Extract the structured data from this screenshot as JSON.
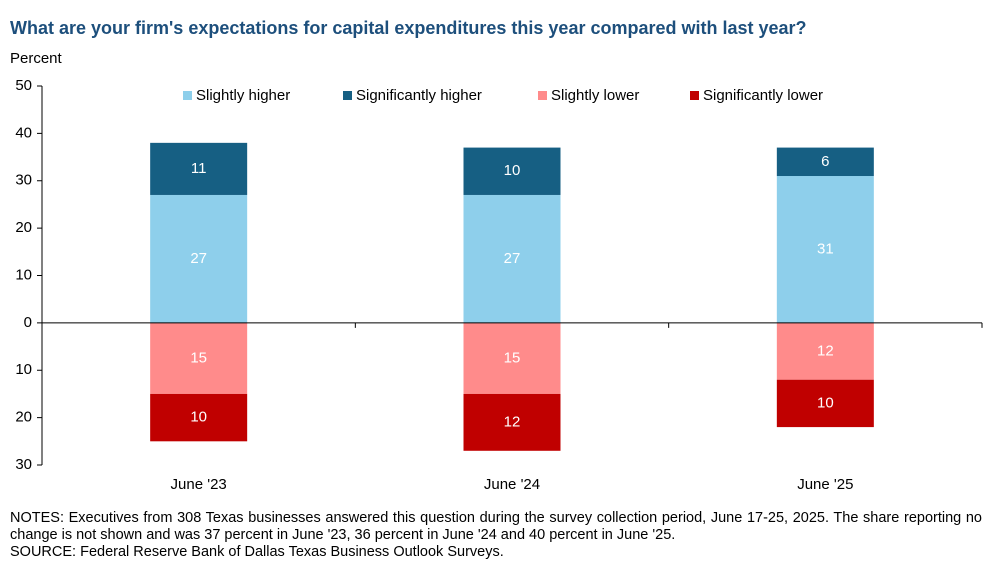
{
  "chart_data": {
    "type": "diverging_stacked_bar",
    "title": "What are your firm's expectations for capital expenditures this year compared with last year?",
    "ylabel": "Percent",
    "categories": [
      "June '23",
      "June '24",
      "June '25"
    ],
    "series": [
      {
        "name": "Slightly higher",
        "color": "#8ecfeb",
        "values": [
          27,
          27,
          31
        ]
      },
      {
        "name": "Significantly higher",
        "color": "#165f83",
        "values": [
          11,
          10,
          6
        ]
      },
      {
        "name": "Slightly lower",
        "color": "#ff8b8b",
        "values": [
          -15,
          -15,
          -12
        ],
        "value_labels": [
          "15",
          "15",
          "12"
        ]
      },
      {
        "name": "Significantly lower",
        "color": "#c00000",
        "values": [
          -10,
          -12,
          -10
        ],
        "value_labels": [
          "10",
          "12",
          "10"
        ]
      }
    ],
    "ylim": [
      -30,
      50
    ],
    "yticks": [
      {
        "value": -30,
        "label": "30"
      },
      {
        "value": -20,
        "label": "20"
      },
      {
        "value": -10,
        "label": "10"
      },
      0,
      10,
      20,
      30,
      40,
      50
    ],
    "notes": "NOTES: Executives from 308 Texas businesses answered this question during the survey collection period, June 17-25, 2025. The share reporting no change is not shown and was 37 percent in June '23, 36 percent in June '24 and 40 percent in June '25.",
    "source": "SOURCE: Federal Reserve Bank of Dallas Texas Business Outlook Surveys."
  }
}
